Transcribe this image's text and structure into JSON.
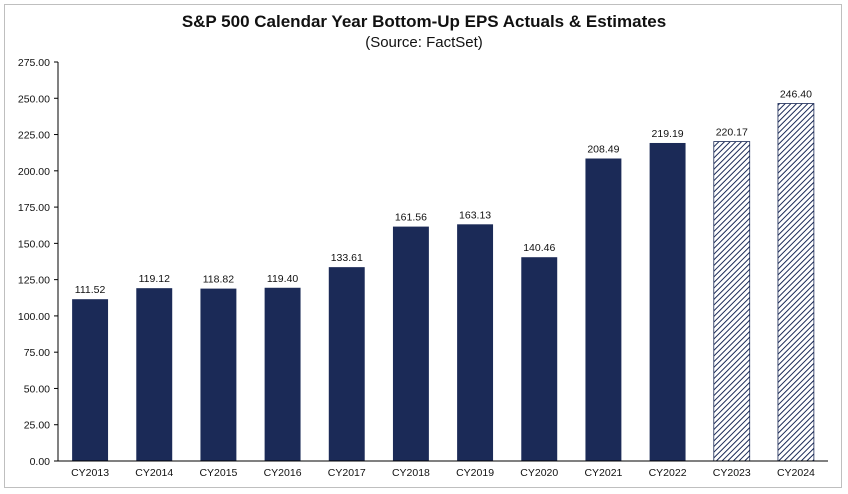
{
  "chart_data": {
    "type": "bar",
    "title": "S&P 500 Calendar Year Bottom-Up EPS Actuals & Estimates",
    "subtitle": "(Source: FactSet)",
    "categories": [
      "CY2013",
      "CY2014",
      "CY2015",
      "CY2016",
      "CY2017",
      "CY2018",
      "CY2019",
      "CY2020",
      "CY2021",
      "CY2022",
      "CY2023",
      "CY2024"
    ],
    "values": [
      111.52,
      119.12,
      118.82,
      119.4,
      133.61,
      161.56,
      163.13,
      140.46,
      208.49,
      219.19,
      220.17,
      246.4
    ],
    "value_labels": [
      "111.52",
      "119.12",
      "118.82",
      "119.40",
      "133.61",
      "161.56",
      "163.13",
      "140.46",
      "208.49",
      "219.19",
      "220.17",
      "246.40"
    ],
    "bar_style": [
      "solid",
      "solid",
      "solid",
      "solid",
      "solid",
      "solid",
      "solid",
      "solid",
      "solid",
      "solid",
      "hatched",
      "hatched"
    ],
    "ylim": [
      0,
      275
    ],
    "yticks": [
      0,
      25,
      50,
      75,
      100,
      125,
      150,
      175,
      200,
      225,
      250,
      275
    ],
    "ytick_labels": [
      "0.00",
      "25.00",
      "50.00",
      "75.00",
      "100.00",
      "125.00",
      "150.00",
      "175.00",
      "200.00",
      "225.00",
      "250.00",
      "275.00"
    ],
    "xlabel": "",
    "ylabel": "",
    "grid": false,
    "colors": {
      "bar": "#1b2a57",
      "hatch_line": "#1b2a57",
      "hatch_bg": "#ffffff",
      "axis": "#000000"
    }
  }
}
